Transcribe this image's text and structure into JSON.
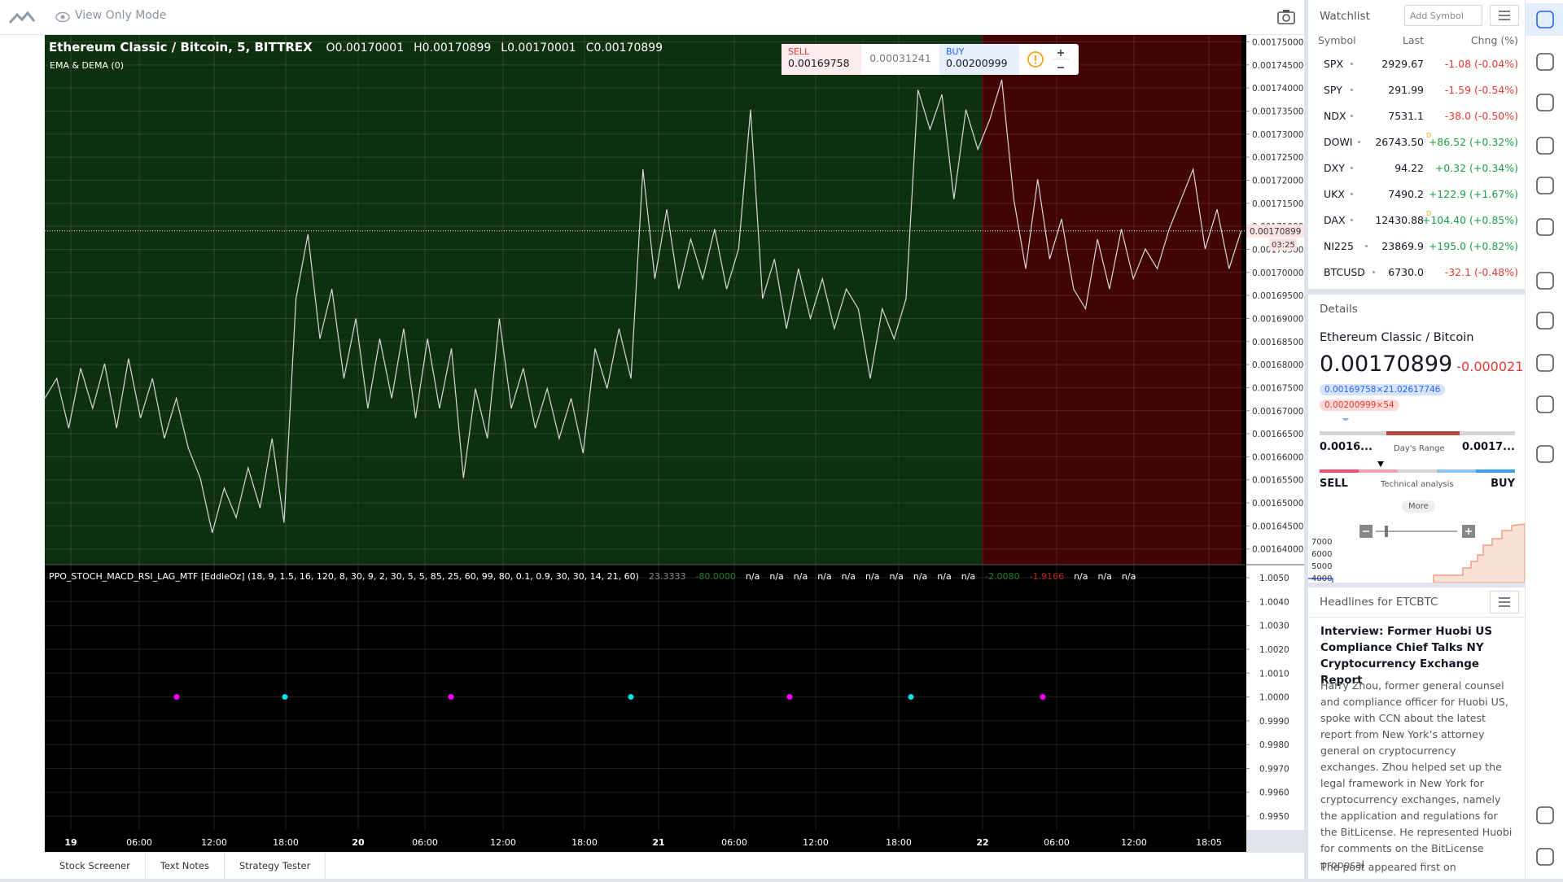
{
  "toolbar": {
    "mode": "View Only Mode"
  },
  "chart": {
    "header": {
      "symbol": "Ethereum Classic / Bitcoin, 5, BITTREX",
      "ohlc": [
        "O0.00170001",
        "H0.00170899",
        "L0.00170001",
        "C0.00170899"
      ],
      "study": "EMA & DEMA (0)"
    },
    "trade": {
      "sell_label": "SELL",
      "sell": "0.00169758",
      "spread": "0.00031241",
      "buy_label": "BUY",
      "buy": "0.00200999"
    },
    "last_price_label": "0.00170899",
    "countdown": "03:25",
    "price_pane": {
      "type": "line",
      "color": "#d9d9d9",
      "values": [
        0.0016727,
        0.001677,
        0.0016662,
        0.0016792,
        0.0016705,
        0.0016802,
        0.0016662,
        0.0016813,
        0.0016684,
        0.001677,
        0.001664,
        0.0016727,
        0.0016619,
        0.0016554,
        0.0016435,
        0.0016532,
        0.0016468,
        0.0016576,
        0.0016489,
        0.001664,
        0.0016457,
        0.0016943,
        0.0017083,
        0.0016856,
        0.0016964,
        0.001677,
        0.00169,
        0.0016705,
        0.0016856,
        0.0016727,
        0.0016878,
        0.0016684,
        0.0016856,
        0.0016705,
        0.0016835,
        0.0016554,
        0.0016748,
        0.001664,
        0.00169,
        0.0016705,
        0.0016792,
        0.0016662,
        0.0016748,
        0.001664,
        0.0016727,
        0.0016608,
        0.0016835,
        0.0016748,
        0.0016878,
        0.001677,
        0.0017224,
        0.0016986,
        0.0017137,
        0.0016964,
        0.0017072,
        0.0016986,
        0.0017094,
        0.0016964,
        0.0017051,
        0.0017353,
        0.0016943,
        0.0017029,
        0.0016878,
        0.0017008,
        0.00169,
        0.0016986,
        0.0016878,
        0.0016964,
        0.0016921,
        0.001677,
        0.0016921,
        0.0016856,
        0.0016943,
        0.0017396,
        0.001731,
        0.0017386,
        0.0017159,
        0.0017353,
        0.0017267,
        0.0017332,
        0.0017418,
        0.0017159,
        0.0017008,
        0.0017202,
        0.0017029,
        0.0017116,
        0.0016964,
        0.0016921,
        0.0017072,
        0.0016964,
        0.0017094,
        0.0016986,
        0.0017051,
        0.0017008,
        0.0017094,
        0.0017159,
        0.0017224,
        0.0017051,
        0.0017137,
        0.0017008,
        0.001709
      ],
      "ylim": [
        0.0016366,
        0.0017515
      ],
      "yticks": [
        {
          "value": 0.00175,
          "label": "0.00175000"
        },
        {
          "value": 0.001745,
          "label": "0.00174500"
        },
        {
          "value": 0.00174,
          "label": "0.00174000"
        },
        {
          "value": 0.001735,
          "label": "0.00173500"
        },
        {
          "value": 0.00173,
          "label": "0.00173000"
        },
        {
          "value": 0.001725,
          "label": "0.00172500"
        },
        {
          "value": 0.00172,
          "label": "0.00172000"
        },
        {
          "value": 0.001715,
          "label": "0.00171500"
        },
        {
          "value": 0.00171,
          "label": "0.00171000"
        },
        {
          "value": 0.001705,
          "label": "0.00170500"
        },
        {
          "value": 0.0017,
          "label": "0.00170000"
        },
        {
          "value": 0.001695,
          "label": "0.00169500"
        },
        {
          "value": 0.00169,
          "label": "0.00169000"
        },
        {
          "value": 0.001685,
          "label": "0.00168500"
        },
        {
          "value": 0.00168,
          "label": "0.00168000"
        },
        {
          "value": 0.001675,
          "label": "0.00167500"
        },
        {
          "value": 0.00167,
          "label": "0.00167000"
        },
        {
          "value": 0.001665,
          "label": "0.00166500"
        },
        {
          "value": 0.00166,
          "label": "0.00166000"
        },
        {
          "value": 0.001655,
          "label": "0.00165500"
        },
        {
          "value": 0.00165,
          "label": "0.00165000"
        },
        {
          "value": 0.001645,
          "label": "0.00164500"
        },
        {
          "value": 0.00164,
          "label": "0.00164000"
        }
      ],
      "grid": true
    },
    "indicator_pane": {
      "type": "scatter",
      "title": "PPO_STOCH_MACD_RSI_LAG_MTF [EddieOz] (18, 9, 1.5, 16, 120, 8, 30, 9, 2, 30, 5, 5, 85, 25, 60, 99, 80, 0.1, 0.9, 30, 30, 14, 21, 60)",
      "readouts": [
        {
          "text": "23.3333",
          "color": "#8a8a8a"
        },
        {
          "text": "-80.0000",
          "color": "#1e7a2e"
        },
        {
          "text": "n/a",
          "color": "#ffffff"
        },
        {
          "text": "n/a",
          "color": "#ffffff"
        },
        {
          "text": "n/a",
          "color": "#ffffff"
        },
        {
          "text": "n/a",
          "color": "#ffffff"
        },
        {
          "text": "n/a",
          "color": "#ffffff"
        },
        {
          "text": "n/a",
          "color": "#ffffff"
        },
        {
          "text": "n/a",
          "color": "#ffffff"
        },
        {
          "text": "n/a",
          "color": "#ffffff"
        },
        {
          "text": "n/a",
          "color": "#ffffff"
        },
        {
          "text": "n/a",
          "color": "#ffffff"
        },
        {
          "text": "-2.0080",
          "color": "#1e7a2e"
        },
        {
          "text": "-1.9166",
          "color": "#b3261e"
        },
        {
          "text": "n/a",
          "color": "#ffffff"
        },
        {
          "text": "n/a",
          "color": "#ffffff"
        },
        {
          "text": "n/a",
          "color": "#ffffff"
        }
      ],
      "values": [
        1,
        1,
        1,
        1,
        1,
        1,
        1
      ],
      "colors": [
        "#ff00ff",
        "#00e5e5",
        "#ff00ff",
        "#00e5e5",
        "#ff00ff",
        "#00e5e5",
        "#ff00ff"
      ],
      "ylim": [
        0.99442,
        1.00555
      ],
      "yticks": [
        {
          "value": 1.005,
          "label": "1.0050"
        },
        {
          "value": 1.004,
          "label": "1.0040"
        },
        {
          "value": 1.003,
          "label": "1.0030"
        },
        {
          "value": 1.002,
          "label": "1.0020"
        },
        {
          "value": 1.001,
          "label": "1.0010"
        },
        {
          "value": 1,
          "label": "1.0000"
        },
        {
          "value": 0.999,
          "label": "0.9990"
        },
        {
          "value": 0.998,
          "label": "0.9980"
        },
        {
          "value": 0.997,
          "label": "0.9970"
        },
        {
          "value": 0.996,
          "label": "0.9960"
        },
        {
          "value": 0.995,
          "label": "0.9950"
        }
      ],
      "grid": true
    },
    "x_labels": [
      "19",
      "06:00",
      "12:00",
      "18:00",
      "20",
      "06:00",
      "12:00",
      "18:00",
      "21",
      "06:00",
      "12:00",
      "18:00",
      "22",
      "06:00",
      "12:00",
      "18:05"
    ]
  },
  "bottom_tabs": [
    "Stock Screener",
    "Text Notes",
    "Strategy Tester"
  ],
  "watchlist": {
    "title": "Watchlist",
    "search_placeholder": "Add Symbol",
    "columns": [
      "Symbol",
      "Last",
      "Chng (%)"
    ],
    "rows": [
      {
        "symbol": "SPX",
        "last": "2929.67",
        "change": "-1.08 (-0.04%)"
      },
      {
        "symbol": "SPY",
        "last": "291.99",
        "change": "-1.59 (-0.54%)"
      },
      {
        "symbol": "NDX",
        "last": "7531.1",
        "change": "-38.0 (-0.50%)"
      },
      {
        "symbol": "DOWI",
        "last": "26743.50",
        "flag": "D",
        "change": "+86.52 (+0.32%)"
      },
      {
        "symbol": "DXY",
        "last": "94.22",
        "change": "+0.32 (+0.34%)"
      },
      {
        "symbol": "UKX",
        "last": "7490.2",
        "change": "+122.9 (+1.67%)"
      },
      {
        "symbol": "DAX",
        "last": "12430.88",
        "flag": "D",
        "change": "+104.40 (+0.85%)"
      },
      {
        "symbol": "NI225",
        "last": "23869.9",
        "change": "+195.0 (+0.82%)"
      },
      {
        "symbol": "BTCUSD",
        "last": "6730.0",
        "change": "-32.1 (-0.48%)"
      }
    ]
  },
  "details": {
    "title": "Details",
    "name": "Ethereum Classic / Bitcoin",
    "price": "0.00170899",
    "change": "-0.0000211",
    "bid": "0.00169758×21.02617746",
    "ask": "0.00200999×54",
    "range_low": "0.0016...",
    "range_label": "Day's Range",
    "range_high": "0.0017...",
    "sell": "SELL",
    "analysis": "Technical analysis",
    "buy": "BUY",
    "more": "More",
    "mini_chart_ticks": [
      "7000",
      "6000",
      "5000",
      "4000"
    ]
  },
  "headlines": {
    "title": "Headlines for ETCBTC",
    "headline": "Interview: Former Huobi US Compliance Chief Talks NY Cryptocurrency Exchange Report",
    "body": "Harry Zhou, former general counsel and compliance officer for Huobi US, spoke with CCN about the latest report from New York’s attorney general on cryptocurrency exchanges. Zhou helped set up the legal framework in New York for cryptocurrency exchanges, namely the application and regulations for the BitLicense. He represented Huobi for comments on the BitLicense proposal",
    "footer": "The post appeared first on"
  }
}
